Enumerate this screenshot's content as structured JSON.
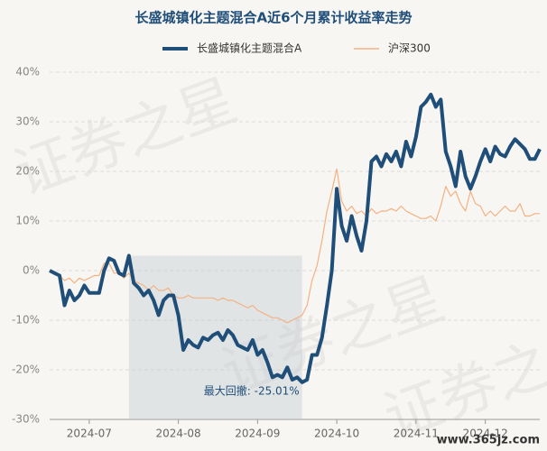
{
  "chart_data": {
    "type": "line",
    "title": "长盛城镇化主题混合A近6个月累计收益率走势",
    "annotation": "最大回撤: -25.01%",
    "watermarks": [
      "证券之星",
      "证券之星",
      "证券之星",
      "www.365jz.com"
    ],
    "categories": [
      null,
      null,
      null,
      null,
      null,
      null,
      null,
      null,
      "2024-07",
      null,
      null,
      null,
      null,
      null,
      null,
      null,
      null,
      null,
      null,
      null,
      null,
      null,
      null,
      null,
      null,
      null,
      "2024-08",
      null,
      null,
      null,
      null,
      null,
      null,
      null,
      null,
      null,
      null,
      null,
      null,
      null,
      null,
      null,
      "2024-09",
      null,
      null,
      null,
      null,
      null,
      null,
      null,
      null,
      null,
      null,
      null,
      null,
      null,
      null,
      null,
      "2024-10",
      null,
      null,
      null,
      null,
      null,
      null,
      null,
      null,
      null,
      null,
      null,
      null,
      null,
      null,
      null,
      "2024-11",
      null,
      null,
      null,
      null,
      null,
      null,
      null,
      null,
      null,
      null,
      null,
      null,
      null,
      "2024-12",
      null,
      null,
      null,
      null,
      null,
      null,
      null,
      null,
      null,
      null,
      null
    ],
    "series": [
      {
        "name": "长盛城镇化主题混合A",
        "color": "#1f4e79",
        "width": 4,
        "values": [
          0,
          -0.5,
          -1,
          -7,
          -4,
          -6,
          -5,
          -3,
          -4.5,
          -4.5,
          -4.5,
          0,
          2.5,
          2,
          -0.5,
          -1,
          3,
          -2.5,
          -3.5,
          -5,
          -4,
          -6,
          -9,
          -6,
          -5,
          -5,
          -9,
          -16,
          -14,
          -15,
          -15.5,
          -13.5,
          -14,
          -13,
          -12.5,
          -14,
          -12,
          -13,
          -15,
          -15.5,
          -16,
          -14,
          -17,
          -16,
          -18.5,
          -21.5,
          -21,
          -21.5,
          -19.5,
          -22,
          -21.5,
          -22.5,
          -22,
          -17,
          -17,
          -13.5,
          -7,
          0,
          16.5,
          9,
          6,
          11,
          7,
          4,
          10,
          22,
          23,
          21,
          23.5,
          22,
          24,
          21,
          26,
          23,
          27,
          33,
          34,
          35.5,
          33,
          34.5,
          24,
          21,
          17,
          24,
          19,
          16.5,
          19,
          22,
          24.5,
          22,
          25,
          23.5,
          23,
          25,
          26.5,
          25.5,
          24.5,
          22.5,
          22.5,
          24.5
        ]
      },
      {
        "name": "沪深300",
        "color": "#f4b183",
        "width": 1.2,
        "values": [
          0,
          -0.5,
          -1,
          -2,
          -1.5,
          -2.5,
          -1.5,
          -2,
          -1.5,
          -1,
          -1,
          1.5,
          1.5,
          -0.5,
          -0.5,
          -1.5,
          -0.5,
          -2,
          -2.5,
          -3,
          -4,
          -3,
          -4,
          -4,
          -3.5,
          -5,
          -5.5,
          -5.5,
          -5,
          -5.5,
          -5.5,
          -5.5,
          -5.5,
          -5.5,
          -6,
          -5.5,
          -6,
          -6,
          -6.5,
          -7,
          -7.5,
          -7,
          -8,
          -8.5,
          -9,
          -9.5,
          -9.5,
          -10,
          -10.5,
          -10,
          -9.5,
          -9,
          -7,
          -2,
          1,
          6,
          12,
          16,
          20.5,
          14,
          12,
          13,
          11.5,
          12,
          11,
          12.5,
          11.5,
          12,
          12,
          12.5,
          12,
          13,
          12,
          11.5,
          11,
          10.5,
          10.5,
          11,
          10,
          13,
          17,
          15,
          16,
          13.5,
          12,
          16,
          13.5,
          13,
          11,
          12,
          11,
          12,
          13,
          12,
          12,
          13.5,
          11,
          11,
          11.5,
          11.5
        ]
      }
    ],
    "ylim": [
      -30,
      40
    ],
    "yticks": [
      {
        "value": -30,
        "label": "-30%"
      },
      {
        "value": -20,
        "label": "-20%"
      },
      {
        "value": -10,
        "label": "-10%"
      },
      {
        "value": 0,
        "label": "0%"
      },
      {
        "value": 10,
        "label": "10%"
      },
      {
        "value": 20,
        "label": "20%"
      },
      {
        "value": 30,
        "label": "30%"
      },
      {
        "value": 40,
        "label": "40%"
      }
    ],
    "grid": true
  }
}
